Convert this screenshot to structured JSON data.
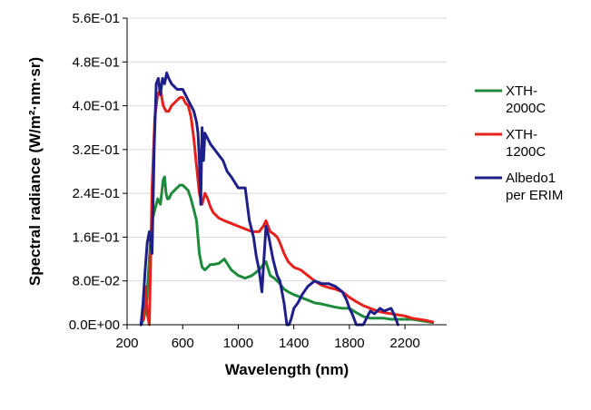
{
  "chart_data": {
    "type": "line",
    "xlabel": "Wavelength (nm)",
    "ylabel": "Spectral radiance (W/m²·nm·sr)",
    "xlim": [
      200,
      2500
    ],
    "ylim": [
      0,
      0.56
    ],
    "x_ticks": [
      200,
      600,
      1000,
      1400,
      1800,
      2200
    ],
    "x_tick_labels": [
      "200",
      "600",
      "1000",
      "1400",
      "1800",
      "2200"
    ],
    "y_ticks": [
      0,
      0.08,
      0.16,
      0.24,
      0.32,
      0.4,
      0.48,
      0.56
    ],
    "y_tick_labels": [
      "0.0E+00",
      "8.0E-02",
      "1.6E-01",
      "2.4E-01",
      "3.2E-01",
      "4.0E-01",
      "4.8E-01",
      "5.6E-01"
    ],
    "grid": "horizontal",
    "legend_position": "right",
    "series": [
      {
        "name": "XTH-2000C",
        "color": "#1e8a3c",
        "x": [
          300,
          320,
          340,
          360,
          380,
          400,
          420,
          440,
          460,
          470,
          480,
          490,
          500,
          520,
          540,
          560,
          580,
          600,
          620,
          640,
          660,
          680,
          700,
          720,
          740,
          760,
          780,
          800,
          820,
          860,
          900,
          950,
          1000,
          1050,
          1100,
          1150,
          1180,
          1200,
          1230,
          1260,
          1300,
          1330,
          1360,
          1400,
          1450,
          1500,
          1550,
          1600,
          1650,
          1700,
          1750,
          1800,
          1850,
          1900,
          1950,
          2000,
          2050,
          2100,
          2150,
          2200,
          2250,
          2300,
          2350,
          2400
        ],
        "y": [
          0.0,
          0.01,
          0.04,
          0.12,
          0.19,
          0.21,
          0.23,
          0.22,
          0.265,
          0.27,
          0.24,
          0.23,
          0.23,
          0.24,
          0.245,
          0.25,
          0.255,
          0.255,
          0.25,
          0.245,
          0.23,
          0.21,
          0.19,
          0.13,
          0.105,
          0.1,
          0.105,
          0.11,
          0.11,
          0.112,
          0.12,
          0.1,
          0.09,
          0.085,
          0.09,
          0.1,
          0.11,
          0.115,
          0.09,
          0.085,
          0.075,
          0.065,
          0.06,
          0.055,
          0.05,
          0.045,
          0.04,
          0.038,
          0.035,
          0.032,
          0.03,
          0.03,
          0.022,
          0.015,
          0.012,
          0.012,
          0.012,
          0.01,
          0.01,
          0.01,
          0.01,
          0.008,
          0.006,
          0.004
        ]
      },
      {
        "name": "XTH-1200C",
        "color": "#e8201c",
        "x": [
          300,
          315,
          330,
          345,
          360,
          380,
          400,
          420,
          440,
          460,
          480,
          500,
          520,
          540,
          560,
          580,
          600,
          620,
          640,
          660,
          680,
          700,
          720,
          740,
          760,
          780,
          800,
          820,
          840,
          860,
          900,
          950,
          1000,
          1050,
          1100,
          1150,
          1180,
          1200,
          1230,
          1260,
          1280,
          1300,
          1330,
          1360,
          1400,
          1450,
          1500,
          1550,
          1600,
          1650,
          1700,
          1750,
          1800,
          1850,
          1900,
          1950,
          2000,
          2050,
          2100,
          2150,
          2200,
          2250,
          2300,
          2350,
          2400
        ],
        "y": [
          0.0,
          0.01,
          0.07,
          0.02,
          0.0,
          0.25,
          0.38,
          0.42,
          0.43,
          0.4,
          0.39,
          0.39,
          0.4,
          0.405,
          0.41,
          0.415,
          0.415,
          0.405,
          0.4,
          0.38,
          0.34,
          0.29,
          0.24,
          0.22,
          0.24,
          0.23,
          0.215,
          0.205,
          0.2,
          0.195,
          0.19,
          0.185,
          0.18,
          0.175,
          0.17,
          0.17,
          0.18,
          0.19,
          0.17,
          0.165,
          0.16,
          0.15,
          0.13,
          0.115,
          0.105,
          0.1,
          0.09,
          0.08,
          0.072,
          0.068,
          0.065,
          0.06,
          0.05,
          0.042,
          0.035,
          0.03,
          0.025,
          0.022,
          0.02,
          0.018,
          0.016,
          0.012,
          0.01,
          0.008,
          0.005
        ]
      },
      {
        "name": "Albedo1 per ERIM",
        "color": "#1f1f8a",
        "x": [
          300,
          315,
          330,
          345,
          360,
          380,
          395,
          410,
          425,
          440,
          455,
          470,
          485,
          500,
          520,
          540,
          560,
          580,
          600,
          620,
          640,
          660,
          680,
          700,
          710,
          720,
          730,
          740,
          750,
          760,
          780,
          800,
          830,
          860,
          890,
          920,
          950,
          1000,
          1050,
          1080,
          1110,
          1130,
          1150,
          1170,
          1180,
          1190,
          1200,
          1220,
          1250,
          1280,
          1300,
          1330,
          1350,
          1365,
          1380,
          1400,
          1430,
          1460,
          1500,
          1550,
          1600,
          1650,
          1700,
          1750,
          1780,
          1800,
          1820,
          1850,
          1880,
          1900,
          1920,
          1950,
          1980,
          2000,
          2020,
          2050,
          2100,
          2120,
          2150
        ],
        "y": [
          0.0,
          0.04,
          0.1,
          0.15,
          0.17,
          0.13,
          0.32,
          0.44,
          0.45,
          0.42,
          0.45,
          0.44,
          0.46,
          0.45,
          0.44,
          0.435,
          0.43,
          0.43,
          0.43,
          0.42,
          0.41,
          0.4,
          0.39,
          0.37,
          0.35,
          0.3,
          0.22,
          0.36,
          0.3,
          0.35,
          0.34,
          0.33,
          0.32,
          0.31,
          0.3,
          0.28,
          0.27,
          0.25,
          0.25,
          0.19,
          0.16,
          0.125,
          0.1,
          0.06,
          0.1,
          0.14,
          0.18,
          0.16,
          0.12,
          0.09,
          0.08,
          0.04,
          0.0,
          0.0,
          0.01,
          0.03,
          0.04,
          0.055,
          0.07,
          0.08,
          0.075,
          0.075,
          0.07,
          0.06,
          0.045,
          0.03,
          0.02,
          0.0,
          0.0,
          0.0,
          0.01,
          0.025,
          0.02,
          0.025,
          0.03,
          0.025,
          0.03,
          0.02,
          0.0
        ]
      }
    ]
  }
}
